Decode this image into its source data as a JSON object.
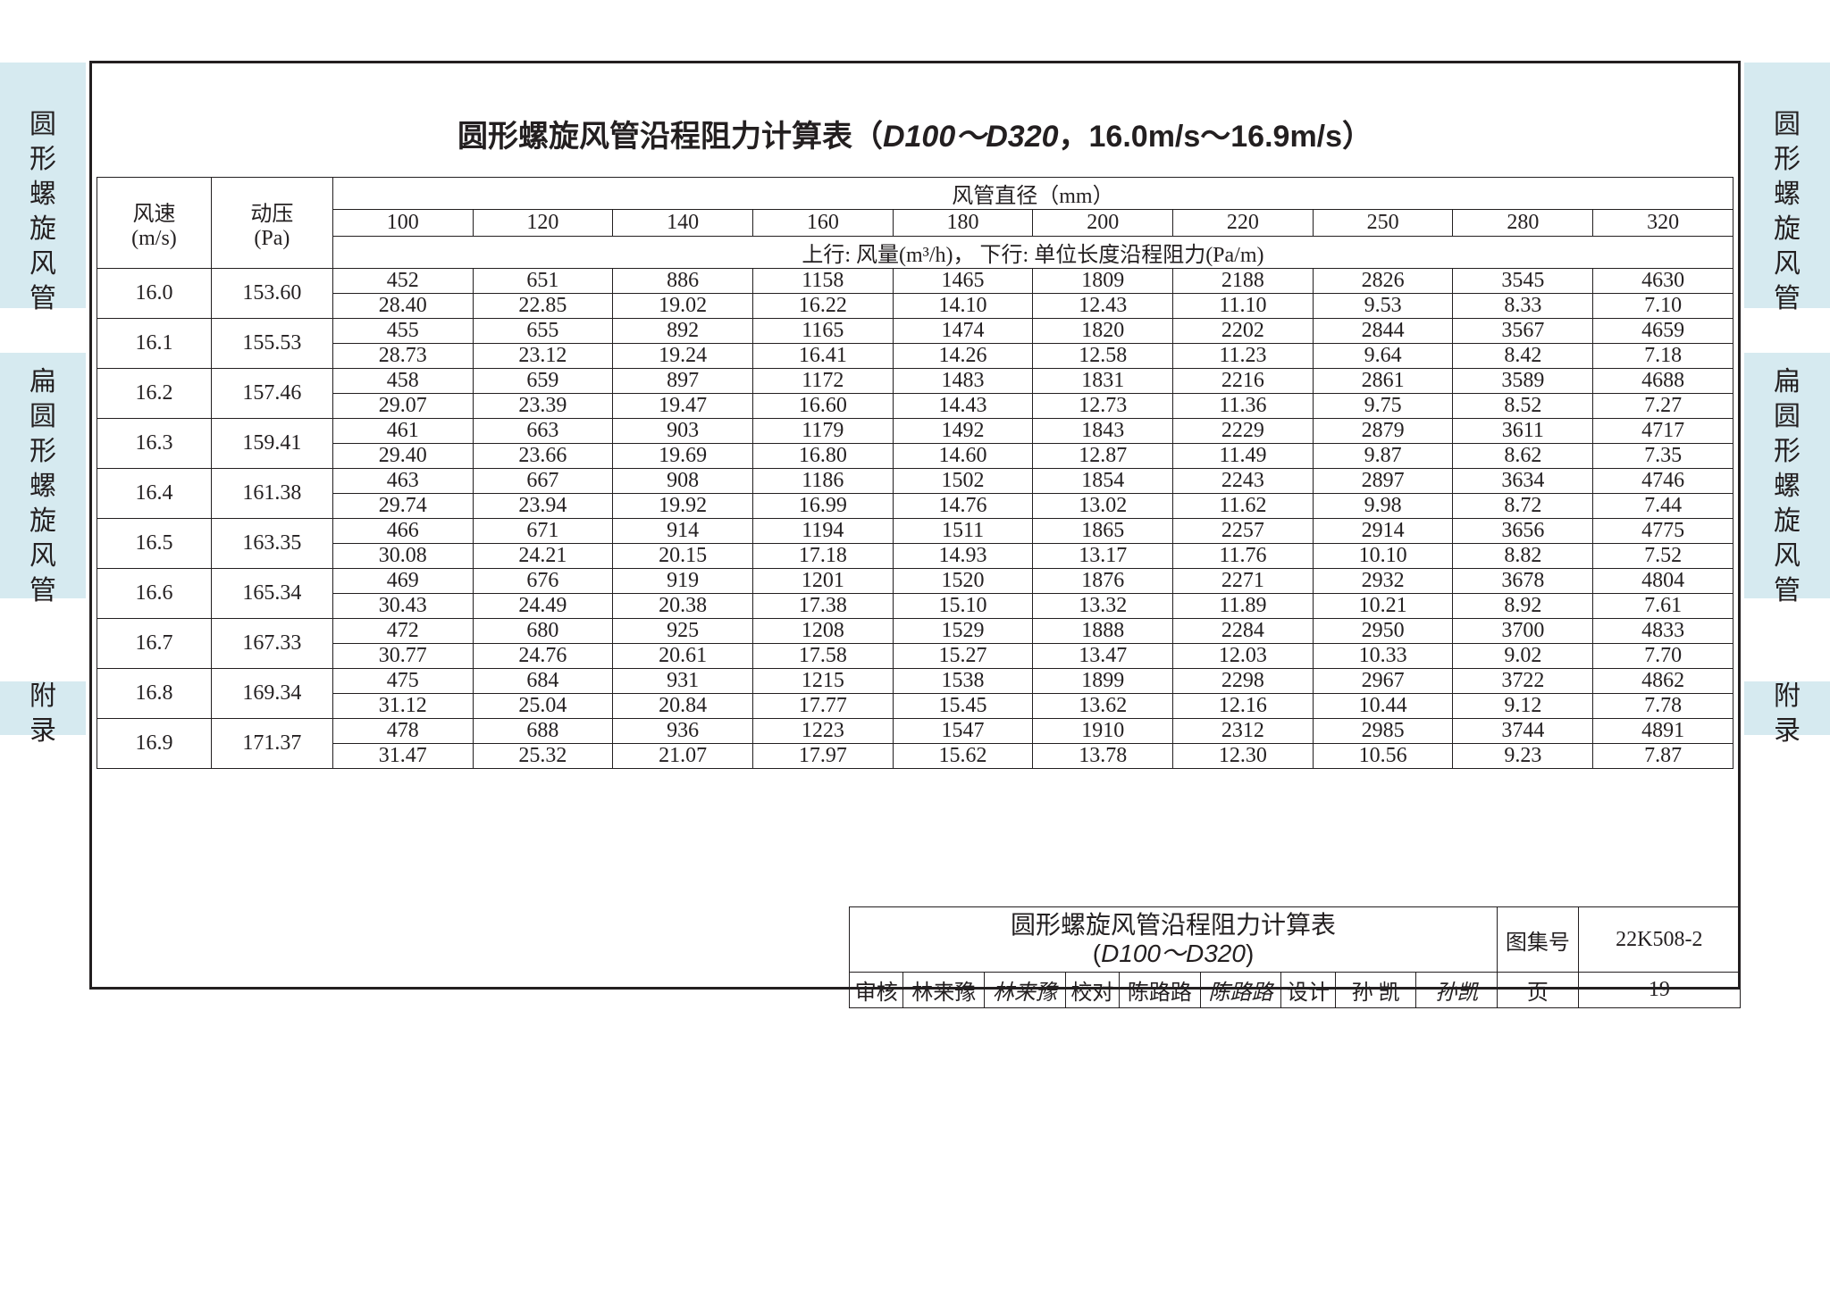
{
  "side_labels": {
    "top": "圆形螺旋风管",
    "mid": "扁圆形螺旋风管",
    "bot": "附录"
  },
  "title": {
    "prefix": "圆形螺旋风管沿程阻力计算表（",
    "d_range": "D100～D320",
    "suffix": "，16.0m/s～16.9m/s）"
  },
  "headers": {
    "velocity": "风速\n(m/s)",
    "pressure": "动压\n(Pa)",
    "diameter_group": "风管直径（mm）",
    "subheader": "上行: 风量(m³/h)，   下行: 单位长度沿程阻力(Pa/m)"
  },
  "diameters": [
    "100",
    "120",
    "140",
    "160",
    "180",
    "200",
    "220",
    "250",
    "280",
    "320"
  ],
  "rows": [
    {
      "v": "16.0",
      "p": "153.60",
      "top": [
        "452",
        "651",
        "886",
        "1158",
        "1465",
        "1809",
        "2188",
        "2826",
        "3545",
        "4630"
      ],
      "bot": [
        "28.40",
        "22.85",
        "19.02",
        "16.22",
        "14.10",
        "12.43",
        "11.10",
        "9.53",
        "8.33",
        "7.10"
      ]
    },
    {
      "v": "16.1",
      "p": "155.53",
      "top": [
        "455",
        "655",
        "892",
        "1165",
        "1474",
        "1820",
        "2202",
        "2844",
        "3567",
        "4659"
      ],
      "bot": [
        "28.73",
        "23.12",
        "19.24",
        "16.41",
        "14.26",
        "12.58",
        "11.23",
        "9.64",
        "8.42",
        "7.18"
      ]
    },
    {
      "v": "16.2",
      "p": "157.46",
      "top": [
        "458",
        "659",
        "897",
        "1172",
        "1483",
        "1831",
        "2216",
        "2861",
        "3589",
        "4688"
      ],
      "bot": [
        "29.07",
        "23.39",
        "19.47",
        "16.60",
        "14.43",
        "12.73",
        "11.36",
        "9.75",
        "8.52",
        "7.27"
      ]
    },
    {
      "v": "16.3",
      "p": "159.41",
      "top": [
        "461",
        "663",
        "903",
        "1179",
        "1492",
        "1843",
        "2229",
        "2879",
        "3611",
        "4717"
      ],
      "bot": [
        "29.40",
        "23.66",
        "19.69",
        "16.80",
        "14.60",
        "12.87",
        "11.49",
        "9.87",
        "8.62",
        "7.35"
      ]
    },
    {
      "v": "16.4",
      "p": "161.38",
      "top": [
        "463",
        "667",
        "908",
        "1186",
        "1502",
        "1854",
        "2243",
        "2897",
        "3634",
        "4746"
      ],
      "bot": [
        "29.74",
        "23.94",
        "19.92",
        "16.99",
        "14.76",
        "13.02",
        "11.62",
        "9.98",
        "8.72",
        "7.44"
      ]
    },
    {
      "v": "16.5",
      "p": "163.35",
      "top": [
        "466",
        "671",
        "914",
        "1194",
        "1511",
        "1865",
        "2257",
        "2914",
        "3656",
        "4775"
      ],
      "bot": [
        "30.08",
        "24.21",
        "20.15",
        "17.18",
        "14.93",
        "13.17",
        "11.76",
        "10.10",
        "8.82",
        "7.52"
      ]
    },
    {
      "v": "16.6",
      "p": "165.34",
      "top": [
        "469",
        "676",
        "919",
        "1201",
        "1520",
        "1876",
        "2271",
        "2932",
        "3678",
        "4804"
      ],
      "bot": [
        "30.43",
        "24.49",
        "20.38",
        "17.38",
        "15.10",
        "13.32",
        "11.89",
        "10.21",
        "8.92",
        "7.61"
      ]
    },
    {
      "v": "16.7",
      "p": "167.33",
      "top": [
        "472",
        "680",
        "925",
        "1208",
        "1529",
        "1888",
        "2284",
        "2950",
        "3700",
        "4833"
      ],
      "bot": [
        "30.77",
        "24.76",
        "20.61",
        "17.58",
        "15.27",
        "13.47",
        "12.03",
        "10.33",
        "9.02",
        "7.70"
      ]
    },
    {
      "v": "16.8",
      "p": "169.34",
      "top": [
        "475",
        "684",
        "931",
        "1215",
        "1538",
        "1899",
        "2298",
        "2967",
        "3722",
        "4862"
      ],
      "bot": [
        "31.12",
        "25.04",
        "20.84",
        "17.77",
        "15.45",
        "13.62",
        "12.16",
        "10.44",
        "9.12",
        "7.78"
      ]
    },
    {
      "v": "16.9",
      "p": "171.37",
      "top": [
        "478",
        "688",
        "936",
        "1223",
        "1547",
        "1910",
        "2312",
        "2985",
        "3744",
        "4891"
      ],
      "bot": [
        "31.47",
        "25.32",
        "21.07",
        "17.97",
        "15.62",
        "13.78",
        "12.30",
        "10.56",
        "9.23",
        "7.87"
      ]
    }
  ],
  "title_block": {
    "main_title": "圆形螺旋风管沿程阻力计算表",
    "sub_title": "(D100～D320)",
    "book_label": "图集号",
    "book_value": "22K508-2",
    "review_label": "审核",
    "review_name": "林来豫",
    "review_sig": "林来豫",
    "check_label": "校对",
    "check_name": "陈路路",
    "check_sig": "陈路路",
    "design_label": "设计",
    "design_name": "孙 凯",
    "design_sig": "孙凯",
    "page_label": "页",
    "page_value": "19"
  }
}
